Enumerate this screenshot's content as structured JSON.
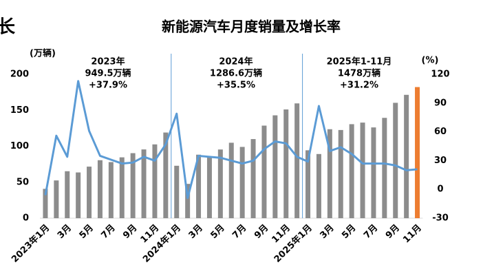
{
  "corner_text": "长",
  "chart_data": {
    "type": "bar_line",
    "title": "新能源汽车月度销量及增长率",
    "y_label": "(万辆)",
    "y2_label": "(%)",
    "annotations": [
      {
        "lines": [
          "2023年",
          "949.5万辆",
          "+37.9%"
        ]
      },
      {
        "lines": [
          "2024年",
          "1286.6万辆",
          "+35.5%"
        ]
      },
      {
        "lines": [
          "2025年1-11月",
          "1478万辆",
          "+31.2%"
        ]
      }
    ],
    "categories": [
      "2023年1月",
      null,
      "3月",
      null,
      "5月",
      null,
      "7月",
      null,
      "9月",
      null,
      "11月",
      null,
      "2024年1月",
      null,
      "3月",
      null,
      "5月",
      null,
      "7月",
      null,
      "9月",
      null,
      "11月",
      null,
      "2025年1月",
      null,
      "3月",
      null,
      "5月",
      null,
      "7月",
      null,
      "9月",
      null,
      "11月"
    ],
    "series": [
      {
        "kind": "bar",
        "color": "#8c8c8c",
        "colors": [
          "#8c8c8c",
          "#8c8c8c",
          "#8c8c8c",
          "#8c8c8c",
          "#8c8c8c",
          "#8c8c8c",
          "#8c8c8c",
          "#8c8c8c",
          "#8c8c8c",
          "#8c8c8c",
          "#8c8c8c",
          "#8c8c8c",
          "#8c8c8c",
          "#8c8c8c",
          "#8c8c8c",
          "#8c8c8c",
          "#8c8c8c",
          "#8c8c8c",
          "#8c8c8c",
          "#8c8c8c",
          "#8c8c8c",
          "#8c8c8c",
          "#8c8c8c",
          "#8c8c8c",
          "#8c8c8c",
          "#8c8c8c",
          "#8c8c8c",
          "#8c8c8c",
          "#8c8c8c",
          "#8c8c8c",
          "#8c8c8c",
          "#8c8c8c",
          "#8c8c8c",
          "#8c8c8c",
          "#ed7d31"
        ],
        "values": [
          40.8,
          52.5,
          65.3,
          63.6,
          71.7,
          80.6,
          78,
          84.6,
          90.4,
          95.6,
          102.6,
          119.1,
          72.9,
          47.7,
          88.3,
          85,
          95.5,
          104.9,
          99.1,
          110,
          128.7,
          143,
          151.2,
          159.6,
          94.4,
          89.2,
          123.7,
          122.6,
          130.7,
          132.9,
          126.2,
          139.5,
          160.4,
          171.5,
          182.3
        ]
      },
      {
        "kind": "line",
        "axis": "y2",
        "color": "#5b9bd5",
        "values": [
          -6,
          56,
          34,
          113,
          61,
          35,
          31,
          27,
          28,
          34,
          30,
          47,
          79,
          -9,
          35,
          34,
          33,
          30,
          27,
          30,
          42,
          50,
          48,
          34,
          29,
          87,
          40,
          44,
          37,
          27,
          27,
          27,
          25,
          20,
          21
        ]
      }
    ],
    "ylim": [
      0,
      200
    ],
    "yticks": [
      0,
      50,
      100,
      150,
      200
    ],
    "y2lim": [
      -30,
      120
    ],
    "y2ticks": [
      -30,
      0,
      30,
      60,
      90,
      120
    ],
    "separator_color": "#5b9bd5"
  }
}
